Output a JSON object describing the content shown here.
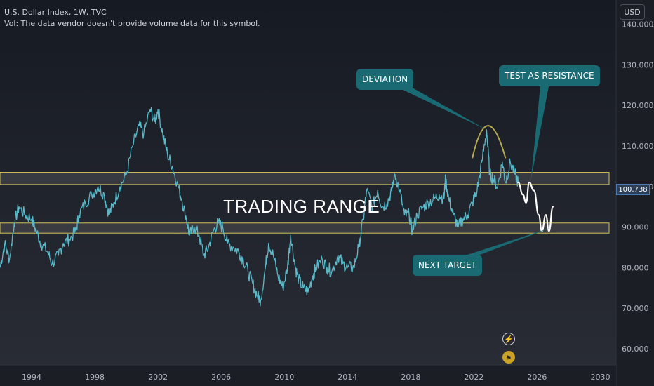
{
  "header": {
    "symbol_line": "U.S. Dollar Index, 1W, TVC",
    "vol_line": "Vol: The data vendor doesn't provide volume data for this symbol."
  },
  "currency_button": "USD",
  "price_label": "100.738",
  "colors": {
    "background": "#1e2128",
    "series": "#5ab8c8",
    "band_border": "#d4c25a",
    "annotation_bg": "#1a6a74",
    "arc": "#b7a94e",
    "projection": "#ffffff"
  },
  "icons": [
    "lightning-icon",
    "flag-icon"
  ],
  "chart_data": {
    "type": "line",
    "title": "U.S. Dollar Index, 1W, TVC",
    "xlabel": "",
    "ylabel": "",
    "xlim": [
      1992.0,
      2031.0
    ],
    "ylim": [
      56.0,
      146.0
    ],
    "y_ticks": [
      "60.000",
      "70.000",
      "80.000",
      "90.000",
      "100.000",
      "110.000",
      "120.000",
      "130.000",
      "140.000"
    ],
    "x_ticks": [
      "1994",
      "1998",
      "2002",
      "2006",
      "2010",
      "2014",
      "2018",
      "2022",
      "2026",
      "2030"
    ],
    "grid": false,
    "series": [
      {
        "values": [
          [
            1992.0,
            80
          ],
          [
            1992.3,
            86
          ],
          [
            1992.6,
            82
          ],
          [
            1992.9,
            91
          ],
          [
            1993.2,
            95
          ],
          [
            1993.6,
            93
          ],
          [
            1994.0,
            92
          ],
          [
            1994.3,
            89
          ],
          [
            1994.6,
            86
          ],
          [
            1995.0,
            84
          ],
          [
            1995.3,
            81
          ],
          [
            1995.7,
            83
          ],
          [
            1996.0,
            86
          ],
          [
            1996.4,
            87
          ],
          [
            1996.8,
            89
          ],
          [
            1997.0,
            93
          ],
          [
            1997.4,
            96
          ],
          [
            1997.8,
            98
          ],
          [
            1998.2,
            100
          ],
          [
            1998.6,
            98
          ],
          [
            1998.9,
            93
          ],
          [
            1999.2,
            96
          ],
          [
            1999.6,
            100
          ],
          [
            2000.0,
            103
          ],
          [
            2000.4,
            110
          ],
          [
            2000.8,
            115
          ],
          [
            2001.1,
            113
          ],
          [
            2001.5,
            119
          ],
          [
            2001.8,
            116
          ],
          [
            2002.0,
            119
          ],
          [
            2002.3,
            113
          ],
          [
            2002.6,
            108
          ],
          [
            2002.9,
            105
          ],
          [
            2003.2,
            101
          ],
          [
            2003.5,
            97
          ],
          [
            2003.8,
            92
          ],
          [
            2004.0,
            88
          ],
          [
            2004.3,
            90
          ],
          [
            2004.6,
            88
          ],
          [
            2004.9,
            83
          ],
          [
            2005.2,
            85
          ],
          [
            2005.5,
            89
          ],
          [
            2005.8,
            91
          ],
          [
            2006.1,
            90
          ],
          [
            2006.4,
            86
          ],
          [
            2006.8,
            85
          ],
          [
            2007.1,
            84
          ],
          [
            2007.4,
            82
          ],
          [
            2007.7,
            79
          ],
          [
            2008.0,
            76
          ],
          [
            2008.3,
            73
          ],
          [
            2008.5,
            72
          ],
          [
            2008.8,
            80
          ],
          [
            2009.0,
            86
          ],
          [
            2009.3,
            83
          ],
          [
            2009.6,
            78
          ],
          [
            2009.9,
            75
          ],
          [
            2010.2,
            80
          ],
          [
            2010.4,
            88
          ],
          [
            2010.7,
            80
          ],
          [
            2010.9,
            77
          ],
          [
            2011.2,
            75
          ],
          [
            2011.5,
            74
          ],
          [
            2011.8,
            78
          ],
          [
            2012.0,
            80
          ],
          [
            2012.4,
            82
          ],
          [
            2012.7,
            80
          ],
          [
            2013.0,
            79
          ],
          [
            2013.4,
            83
          ],
          [
            2013.7,
            81
          ],
          [
            2014.0,
            80
          ],
          [
            2014.4,
            80
          ],
          [
            2014.7,
            85
          ],
          [
            2015.0,
            92
          ],
          [
            2015.2,
            99
          ],
          [
            2015.6,
            95
          ],
          [
            2015.9,
            99
          ],
          [
            2016.2,
            95
          ],
          [
            2016.5,
            96
          ],
          [
            2016.8,
            99
          ],
          [
            2017.0,
            103
          ],
          [
            2017.3,
            99
          ],
          [
            2017.6,
            93
          ],
          [
            2017.9,
            93
          ],
          [
            2018.1,
            89
          ],
          [
            2018.4,
            93
          ],
          [
            2018.8,
            95
          ],
          [
            2019.1,
            96
          ],
          [
            2019.5,
            97
          ],
          [
            2019.8,
            98
          ],
          [
            2020.1,
            97
          ],
          [
            2020.2,
            102
          ],
          [
            2020.4,
            97
          ],
          [
            2020.7,
            93
          ],
          [
            2021.0,
            90
          ],
          [
            2021.3,
            92
          ],
          [
            2021.6,
            93
          ],
          [
            2021.9,
            96
          ],
          [
            2022.2,
            99
          ],
          [
            2022.5,
            106
          ],
          [
            2022.8,
            114
          ],
          [
            2023.0,
            103
          ],
          [
            2023.2,
            102
          ],
          [
            2023.5,
            100
          ],
          [
            2023.8,
            106
          ],
          [
            2024.0,
            101
          ],
          [
            2024.3,
            106
          ],
          [
            2024.6,
            103
          ],
          [
            2024.8,
            101
          ]
        ]
      }
    ],
    "projection": [
      [
        2024.8,
        101
      ],
      [
        2025.1,
        98
      ],
      [
        2025.3,
        96
      ],
      [
        2025.5,
        101
      ],
      [
        2025.8,
        99
      ],
      [
        2026.1,
        93
      ],
      [
        2026.3,
        89
      ],
      [
        2026.55,
        93
      ],
      [
        2026.75,
        89
      ],
      [
        2027.0,
        95
      ]
    ],
    "zones": [
      {
        "top": 103.5,
        "bottom": 100.5
      },
      {
        "top": 91.0,
        "bottom": 88.5
      }
    ],
    "deviation_arc": {
      "x_start": 2021.9,
      "x_peak": 2022.85,
      "x_end": 2024.0,
      "y_base": 107,
      "y_peak": 115
    },
    "annotations": [
      {
        "text": "DEVIATION",
        "kind": "callout",
        "target": [
          2022.8,
          114.0
        ]
      },
      {
        "text": "TEST AS RESISTANCE",
        "kind": "callout",
        "target": [
          2025.6,
          101.5
        ]
      },
      {
        "text": "NEXT TARGET",
        "kind": "callout",
        "target": [
          2027.0,
          90.0
        ]
      },
      {
        "text": "TRADING RANGE",
        "kind": "label"
      }
    ],
    "last_price": 100.738
  }
}
